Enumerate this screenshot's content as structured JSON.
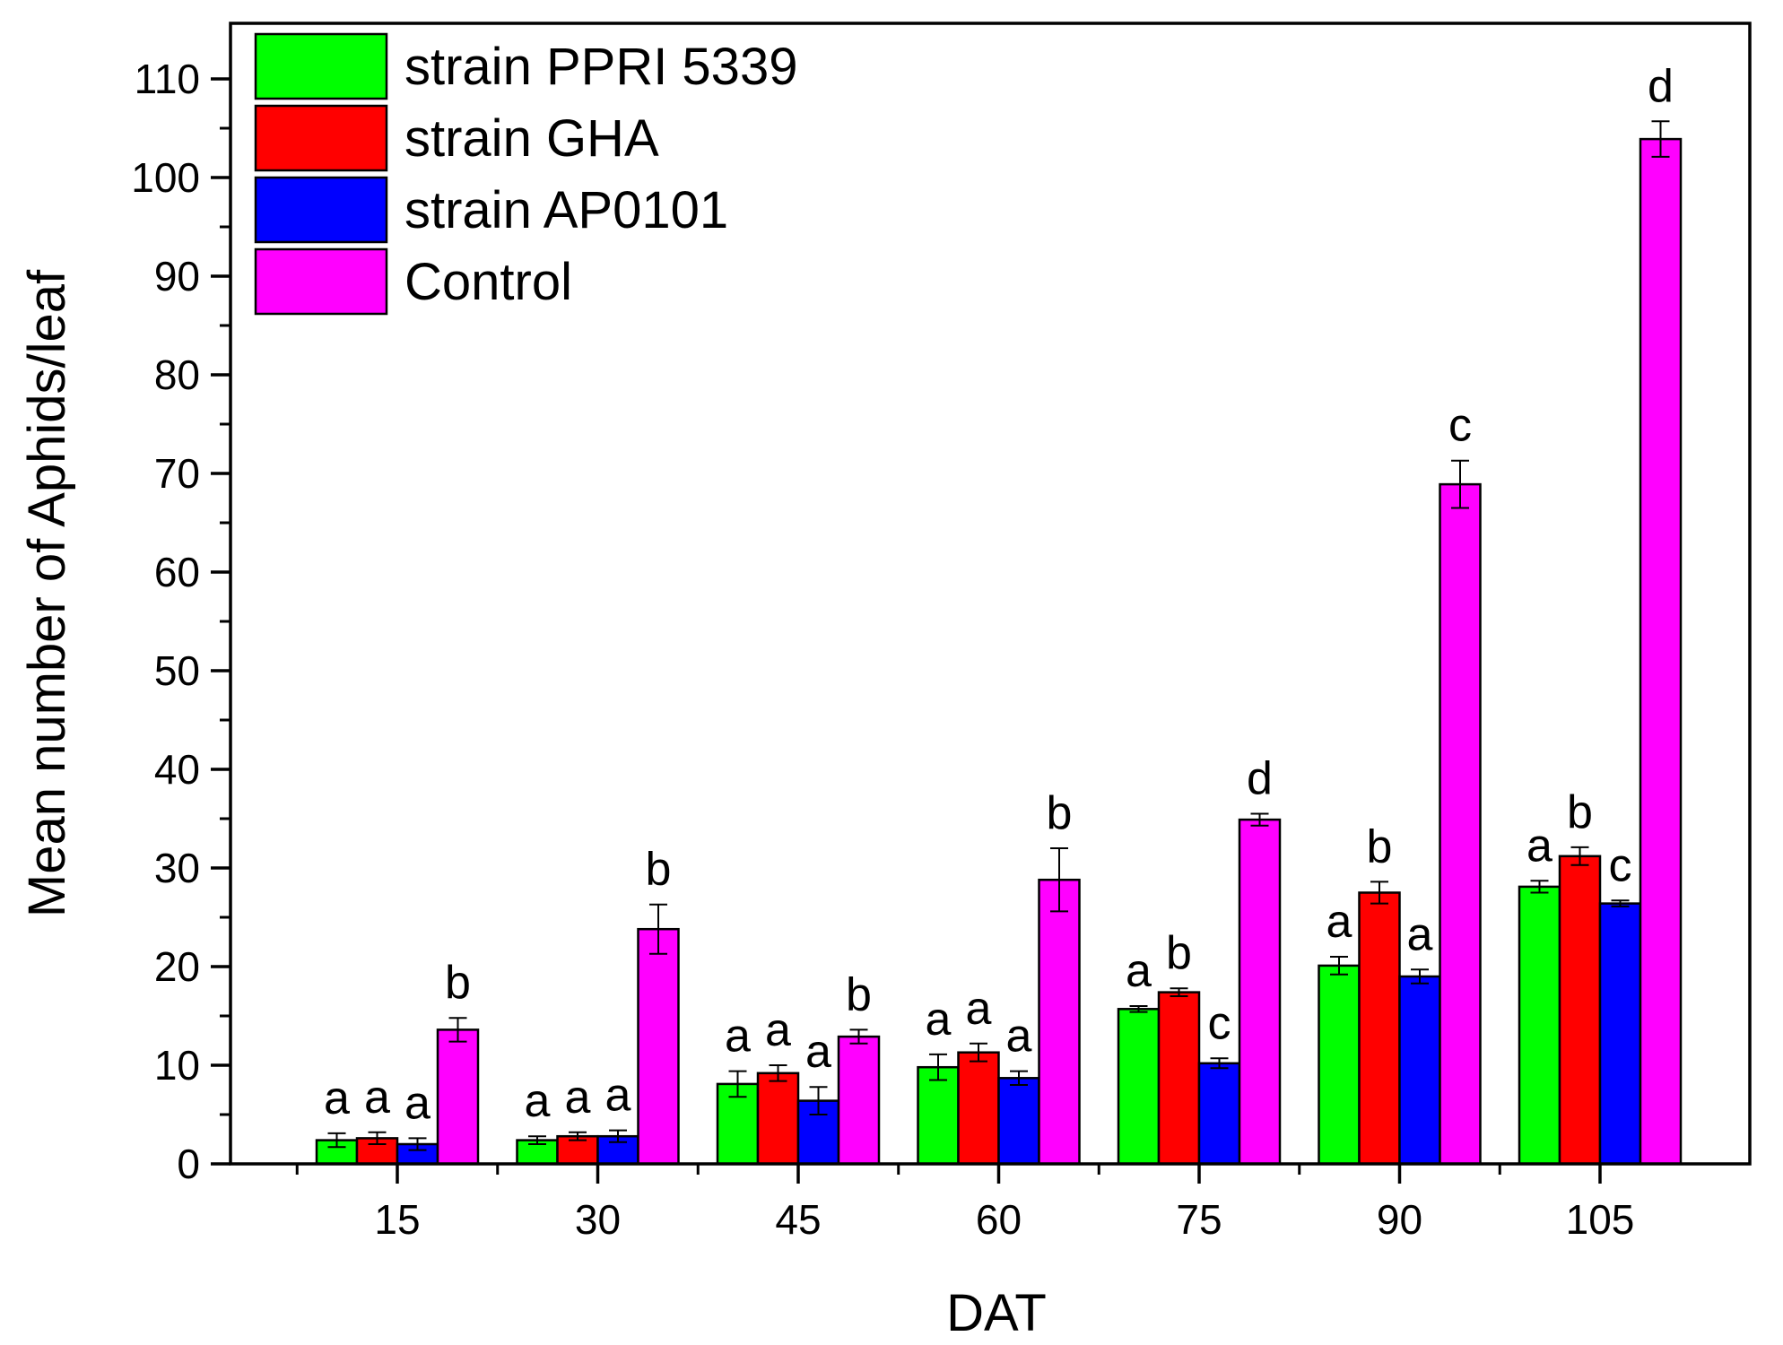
{
  "chart_data": {
    "type": "bar",
    "title": "",
    "xlabel": "DAT",
    "ylabel": "Mean number of Aphids/leaf",
    "ylim": [
      0,
      115
    ],
    "yticks": [
      0,
      10,
      20,
      30,
      40,
      50,
      60,
      70,
      80,
      90,
      100,
      110
    ],
    "categories": [
      "15",
      "30",
      "45",
      "60",
      "75",
      "90",
      "105"
    ],
    "grid": false,
    "legend_position": "top-left",
    "series": [
      {
        "name": "strain PPRI 5339",
        "color": "#00ff00",
        "values": [
          2.4,
          2.4,
          8.1,
          9.8,
          15.7,
          20.1,
          28.1
        ],
        "errors": [
          0.7,
          0.4,
          1.3,
          1.3,
          0.3,
          0.9,
          0.6
        ],
        "letters": [
          "a",
          "a",
          "a",
          "a",
          "a",
          "a",
          "a"
        ]
      },
      {
        "name": "strain GHA",
        "color": "#ff0000",
        "values": [
          2.6,
          2.8,
          9.2,
          11.3,
          17.4,
          27.5,
          31.2
        ],
        "errors": [
          0.6,
          0.4,
          0.8,
          0.9,
          0.4,
          1.1,
          0.9
        ],
        "letters": [
          "a",
          "a",
          "a",
          "a",
          "b",
          "b",
          "b"
        ]
      },
      {
        "name": "strain AP0101",
        "color": "#0000ff",
        "values": [
          2.0,
          2.8,
          6.4,
          8.7,
          10.2,
          19.0,
          26.4
        ],
        "errors": [
          0.6,
          0.6,
          1.4,
          0.7,
          0.5,
          0.7,
          0.3
        ],
        "letters": [
          "a",
          "a",
          "a",
          "a",
          "c",
          "a",
          "c"
        ]
      },
      {
        "name": "Control",
        "color": "#ff00ff",
        "values": [
          13.6,
          23.8,
          12.9,
          28.8,
          34.9,
          68.9,
          103.9
        ],
        "errors": [
          1.2,
          2.5,
          0.7,
          3.2,
          0.6,
          2.4,
          1.8
        ],
        "letters": [
          "b",
          "b",
          "b",
          "b",
          "d",
          "c",
          "d"
        ]
      }
    ]
  }
}
